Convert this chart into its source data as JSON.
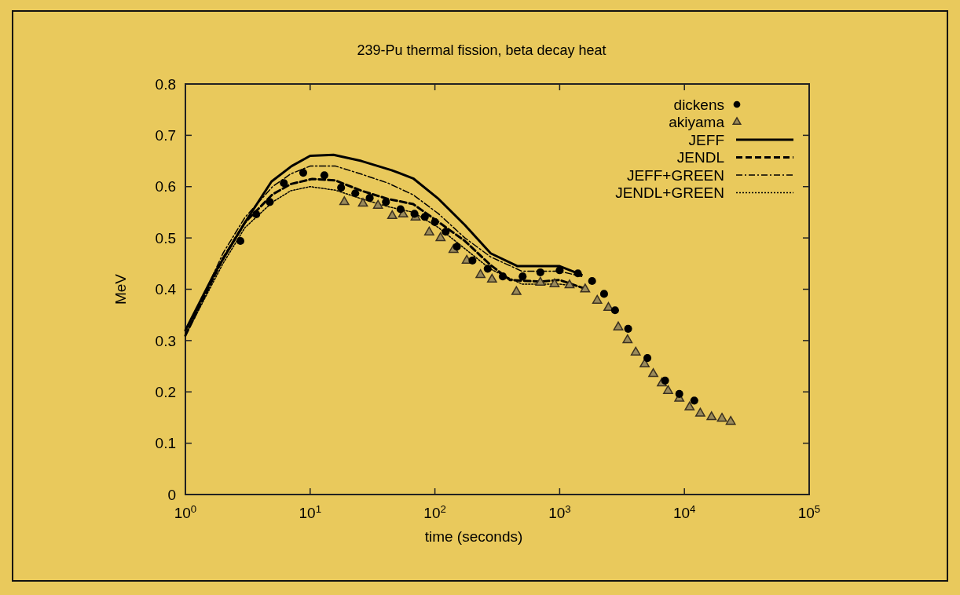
{
  "chart_data": {
    "type": "line",
    "title": "239-Pu thermal fission, beta decay heat",
    "xlabel": "time (seconds)",
    "ylabel": "MeV",
    "log": "x",
    "xlim": [
      1,
      100000
    ],
    "ylim": [
      0,
      0.8
    ],
    "xticks": [
      {
        "value": 1,
        "label": "10$^{0}$"
      },
      {
        "value": 10,
        "label": "10$^{1}$"
      },
      {
        "value": 100,
        "label": "10$^{2}$"
      },
      {
        "value": 1000,
        "label": "10$^{3}$"
      },
      {
        "value": 10000,
        "label": "10$^{4}$"
      },
      {
        "value": 100000,
        "label": "10$^{5}$"
      }
    ],
    "yticks": [
      0,
      0.1,
      0.2,
      0.3,
      0.4,
      0.5,
      0.6,
      0.7,
      0.8
    ],
    "grid": false,
    "legend": "top right",
    "series": [
      {
        "name": "dickens",
        "type": "scatter",
        "marker": "circle",
        "color": "#000000",
        "x": [
          2.76,
          3.7,
          4.75,
          6.15,
          8.8,
          13,
          17.7,
          23,
          30,
          40.5,
          53,
          68.6,
          83,
          100,
          122,
          150,
          200,
          265,
          350,
          505,
          700,
          1000,
          1400,
          1820,
          2270,
          2780,
          3540,
          5050,
          7000,
          9100,
          12000
        ],
        "values": [
          0.494,
          0.546,
          0.57,
          0.607,
          0.627,
          0.622,
          0.598,
          0.587,
          0.578,
          0.57,
          0.556,
          0.547,
          0.541,
          0.531,
          0.512,
          0.483,
          0.456,
          0.44,
          0.425,
          0.425,
          0.433,
          0.437,
          0.431,
          0.416,
          0.391,
          0.359,
          0.323,
          0.266,
          0.222,
          0.196,
          0.183
        ]
      },
      {
        "name": "akiyama",
        "type": "scatter",
        "marker": "triangle",
        "color": "#9a8a5a",
        "x": [
          18.8,
          26.5,
          35,
          45.5,
          55.6,
          70,
          90,
          111,
          141,
          180,
          232,
          287,
          450,
          700,
          910,
          1200,
          1600,
          2000,
          2460,
          2950,
          3500,
          4070,
          4800,
          5630,
          6600,
          7400,
          9100,
          11000,
          13400,
          16500,
          20000,
          23500
        ],
        "values": [
          0.57,
          0.567,
          0.563,
          0.543,
          0.546,
          0.54,
          0.511,
          0.5,
          0.477,
          0.456,
          0.428,
          0.419,
          0.395,
          0.413,
          0.41,
          0.408,
          0.4,
          0.378,
          0.364,
          0.326,
          0.301,
          0.277,
          0.254,
          0.235,
          0.217,
          0.202,
          0.187,
          0.17,
          0.158,
          0.151,
          0.148,
          0.142
        ]
      },
      {
        "name": "JEFF",
        "line_style": "solid",
        "color": "#000000",
        "x": [
          1,
          1.7,
          3,
          4.9,
          7.1,
          10,
          15.4,
          25.7,
          45,
          67,
          107,
          174,
          280,
          460,
          760,
          1000,
          1500
        ],
        "values": [
          0.32,
          0.43,
          0.53,
          0.61,
          0.64,
          0.66,
          0.662,
          0.65,
          0.632,
          0.616,
          0.576,
          0.525,
          0.47,
          0.445,
          0.445,
          0.445,
          0.428
        ]
      },
      {
        "name": "JENDL",
        "line_style": "dashed",
        "color": "#000000",
        "x": [
          1,
          2,
          3,
          5,
          7,
          10.4,
          16,
          25.7,
          42,
          67,
          107,
          174,
          280,
          400,
          700,
          1000,
          1560
        ],
        "values": [
          0.31,
          0.46,
          0.53,
          0.585,
          0.605,
          0.615,
          0.612,
          0.592,
          0.576,
          0.566,
          0.531,
          0.494,
          0.447,
          0.418,
          0.415,
          0.418,
          0.402
        ]
      },
      {
        "name": "JEFF+GREEN",
        "line_style": "dashdot",
        "color": "#000000",
        "x": [
          1,
          2,
          3,
          5,
          7,
          10,
          16,
          26,
          42,
          67,
          107,
          174,
          280,
          500,
          1000,
          1500
        ],
        "values": [
          0.31,
          0.47,
          0.54,
          0.6,
          0.625,
          0.64,
          0.64,
          0.624,
          0.607,
          0.584,
          0.547,
          0.5,
          0.463,
          0.435,
          0.435,
          0.425
        ]
      },
      {
        "name": "JENDL+GREEN",
        "line_style": "dotted",
        "color": "#000000",
        "x": [
          1,
          2,
          3,
          5,
          7,
          10,
          16,
          26,
          42,
          67,
          107,
          174,
          280,
          500,
          1000,
          1500
        ],
        "values": [
          0.31,
          0.45,
          0.52,
          0.57,
          0.592,
          0.6,
          0.593,
          0.576,
          0.561,
          0.55,
          0.52,
          0.479,
          0.439,
          0.41,
          0.41,
          0.405
        ]
      }
    ]
  }
}
